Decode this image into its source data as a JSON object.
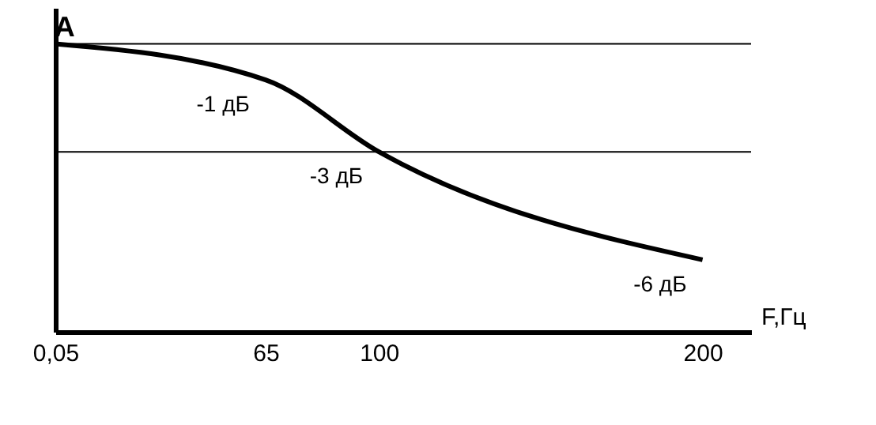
{
  "chart_data": {
    "type": "line",
    "title": "A",
    "xlabel": "F,Гц",
    "x": [
      0.05,
      65,
      100,
      200
    ],
    "series": [
      {
        "color": "#000000",
        "values": [
          0,
          -1,
          -3,
          -6
        ],
        "value_labels": [
          null,
          "-1 дБ",
          "-3 дБ",
          "-6 дБ"
        ]
      }
    ],
    "xlim": [
      0.05,
      215
    ],
    "xticks": [
      {
        "value": 0.05,
        "label": "0,05"
      },
      65,
      100,
      200
    ],
    "ylim": [
      -8,
      1
    ],
    "tick_labels": "x",
    "ref_lines": [
      {
        "axis": "y",
        "value": 0,
        "color": "#000000"
      },
      {
        "axis": "y",
        "value": -3,
        "color": "#000000"
      }
    ],
    "grid": false,
    "marker": "none",
    "line_style": "solid"
  }
}
